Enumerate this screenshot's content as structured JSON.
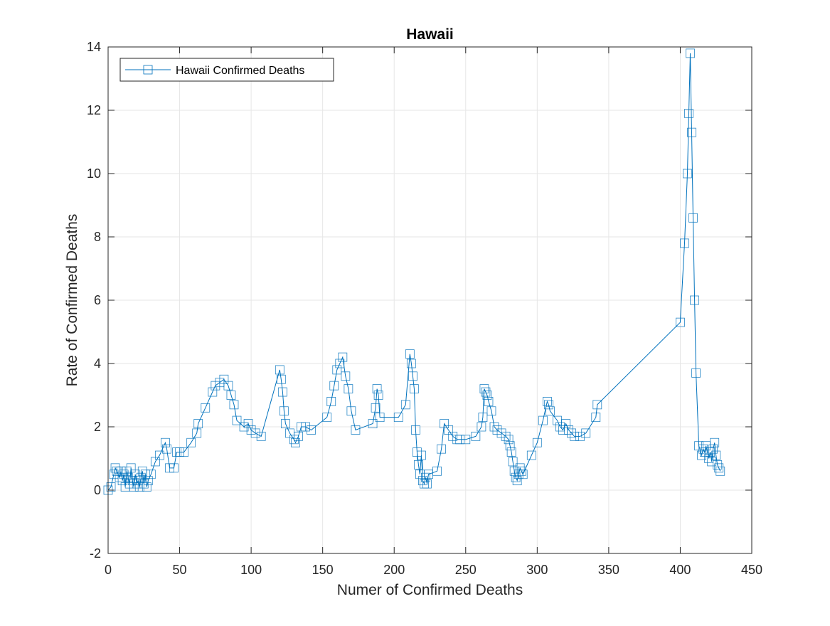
{
  "chart_data": {
    "type": "line",
    "title": "Hawaii",
    "xlabel": "Numer of Confirmed Deaths",
    "ylabel": "Rate of Confirmed Deaths",
    "xlim": [
      0,
      450
    ],
    "ylim": [
      -2,
      14
    ],
    "xticks": [
      0,
      50,
      100,
      150,
      200,
      250,
      300,
      350,
      400,
      450
    ],
    "yticks": [
      -2,
      0,
      2,
      4,
      6,
      8,
      10,
      12,
      14
    ],
    "xtick_labels": [
      "0",
      "50",
      "100",
      "150",
      "200",
      "250",
      "300",
      "350",
      "400",
      "450"
    ],
    "ytick_labels": [
      "-2",
      "0",
      "2",
      "4",
      "6",
      "8",
      "10",
      "12",
      "14"
    ],
    "grid": true,
    "legend_position": "top-left",
    "series": [
      {
        "name": "Hawaii Confirmed Deaths",
        "color": "#0072BD",
        "marker": "square",
        "x": [
          0,
          2,
          4,
          5,
          6,
          8,
          9,
          10,
          11,
          12,
          13,
          14,
          15,
          16,
          17,
          18,
          19,
          20,
          21,
          22,
          23,
          24,
          25,
          26,
          27,
          28,
          30,
          33,
          36,
          40,
          41,
          43,
          46,
          48,
          50,
          53,
          58,
          62,
          63,
          68,
          73,
          75,
          78,
          81,
          84,
          86,
          88,
          90,
          95,
          98,
          100,
          103,
          107,
          120,
          121,
          122,
          123,
          124,
          127,
          130,
          131,
          133,
          135,
          138,
          142,
          153,
          156,
          158,
          160,
          162,
          164,
          166,
          168,
          170,
          173,
          185,
          187,
          188,
          189,
          190,
          203,
          208,
          211,
          212,
          213,
          214,
          215,
          216,
          217,
          218,
          219,
          220,
          221,
          222,
          223,
          224,
          230,
          233,
          235,
          238,
          241,
          244,
          246,
          250,
          257,
          261,
          262,
          263,
          264,
          265,
          266,
          268,
          270,
          272,
          275,
          278,
          280,
          281,
          282,
          283,
          284,
          285,
          286,
          287,
          288,
          289,
          290,
          296,
          300,
          304,
          307,
          308,
          309,
          314,
          316,
          318,
          320,
          322,
          324,
          326,
          330,
          334,
          341,
          342,
          400,
          403,
          405,
          406,
          407,
          408,
          409,
          410,
          411,
          413,
          415,
          416,
          417,
          418,
          420,
          421,
          422,
          423,
          424,
          425,
          426,
          427,
          428
        ],
        "y": [
          0,
          0.1,
          0.5,
          0.7,
          0.6,
          0.4,
          0.6,
          0.3,
          0.5,
          0.1,
          0.6,
          0.4,
          0.2,
          0.7,
          0.3,
          0.1,
          0.5,
          0.2,
          0.3,
          0.1,
          0.4,
          0.6,
          0.2,
          0.5,
          0.1,
          0.3,
          0.5,
          0.9,
          1.1,
          1.5,
          1.3,
          0.7,
          0.7,
          1.2,
          1.2,
          1.2,
          1.5,
          1.8,
          2.1,
          2.6,
          3.1,
          3.3,
          3.4,
          3.5,
          3.3,
          3.0,
          2.7,
          2.2,
          2.0,
          2.1,
          1.9,
          1.8,
          1.7,
          3.8,
          3.5,
          3.1,
          2.5,
          2.1,
          1.8,
          1.6,
          1.5,
          1.7,
          2.0,
          2.0,
          1.9,
          2.3,
          2.8,
          3.3,
          3.8,
          4.0,
          4.2,
          3.6,
          3.2,
          2.5,
          1.9,
          2.1,
          2.6,
          3.2,
          3.0,
          2.3,
          2.3,
          2.7,
          4.3,
          4.0,
          3.6,
          3.2,
          1.9,
          1.2,
          0.8,
          0.5,
          1.1,
          0.3,
          0.2,
          0.4,
          0.2,
          0.5,
          0.6,
          1.3,
          2.1,
          1.9,
          1.7,
          1.6,
          1.6,
          1.6,
          1.7,
          2.0,
          2.3,
          3.2,
          3.1,
          3.0,
          2.8,
          2.5,
          2.0,
          1.9,
          1.8,
          1.7,
          1.6,
          1.4,
          1.2,
          0.9,
          0.6,
          0.4,
          0.3,
          0.5,
          0.7,
          0.6,
          0.5,
          1.1,
          1.5,
          2.2,
          2.8,
          2.7,
          2.5,
          2.2,
          2.0,
          1.9,
          2.1,
          1.9,
          1.8,
          1.7,
          1.7,
          1.8,
          2.3,
          2.7,
          5.3,
          7.8,
          10.0,
          11.9,
          13.8,
          11.3,
          8.6,
          6.0,
          3.7,
          1.4,
          1.1,
          1.3,
          1.2,
          1.4,
          1.0,
          1.2,
          0.9,
          1.3,
          1.5,
          1.1,
          0.8,
          0.7,
          0.6
        ]
      }
    ]
  }
}
